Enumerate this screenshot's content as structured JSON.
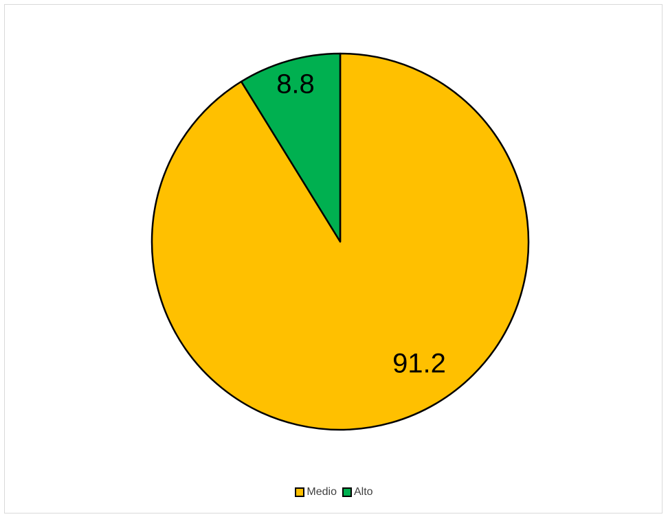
{
  "chart_data": {
    "type": "pie",
    "slices": [
      {
        "label": "Medio",
        "value": 91.2,
        "color": "#FFC000"
      },
      {
        "label": "Alto",
        "value": 8.8,
        "color": "#00B050"
      }
    ],
    "start_angle": "12 o'clock",
    "direction": "clockwise",
    "legend_position": "bottom",
    "data_labels": [
      "91.2",
      "8.8"
    ]
  },
  "legend": {
    "items": [
      {
        "label": "Medio",
        "color": "#FFC000"
      },
      {
        "label": "Alto",
        "color": "#00B050"
      }
    ]
  }
}
